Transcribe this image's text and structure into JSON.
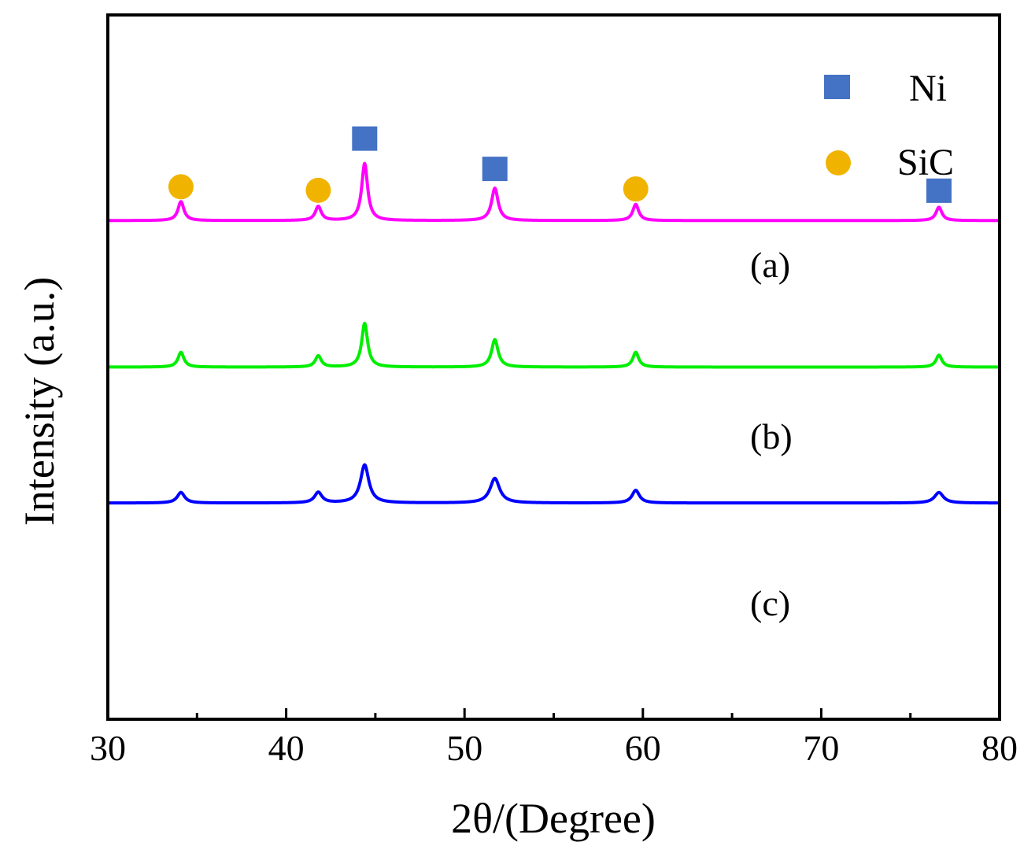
{
  "chart_data": {
    "type": "line",
    "title": "",
    "xlabel": "2θ/(Degree)",
    "ylabel": "Intensity (a.u.)",
    "xlim": [
      30,
      80
    ],
    "ylim": [
      0,
      100
    ],
    "major_ticks": [
      30,
      40,
      50,
      60,
      70,
      80
    ],
    "major_tick_labels": [
      "30",
      "40",
      "50",
      "60",
      "70",
      "80"
    ],
    "minor_ticks": [
      35,
      45,
      55,
      65,
      75
    ],
    "grid": false,
    "legend": {
      "position": "top-right",
      "entries": [
        {
          "label": "Ni",
          "marker": "square",
          "color": "#4472c4"
        },
        {
          "label": "SiC",
          "marker": "circle",
          "color": "#f0b400"
        }
      ]
    },
    "series": [
      {
        "name": "(a)",
        "color": "#ff00ff",
        "baseline": 70.8,
        "peaks": [
          {
            "x": 34.1,
            "height": 2.7,
            "width": 0.2
          },
          {
            "x": 41.8,
            "height": 2.0,
            "width": 0.2
          },
          {
            "x": 44.4,
            "height": 8.1,
            "width": 0.2
          },
          {
            "x": 51.7,
            "height": 4.6,
            "width": 0.22
          },
          {
            "x": 59.6,
            "height": 2.3,
            "width": 0.2
          },
          {
            "x": 76.6,
            "height": 1.9,
            "width": 0.2
          }
        ]
      },
      {
        "name": "(b)",
        "color": "#00ee00",
        "baseline": 50.0,
        "peaks": [
          {
            "x": 34.1,
            "height": 2.1,
            "width": 0.2
          },
          {
            "x": 41.8,
            "height": 1.6,
            "width": 0.2
          },
          {
            "x": 44.4,
            "height": 6.2,
            "width": 0.2
          },
          {
            "x": 51.7,
            "height": 3.9,
            "width": 0.22
          },
          {
            "x": 59.6,
            "height": 2.1,
            "width": 0.2
          },
          {
            "x": 76.6,
            "height": 1.7,
            "width": 0.2
          }
        ]
      },
      {
        "name": "(c)",
        "color": "#0000ff",
        "baseline": 30.7,
        "peaks": [
          {
            "x": 34.1,
            "height": 1.5,
            "width": 0.25
          },
          {
            "x": 41.8,
            "height": 1.5,
            "width": 0.25
          },
          {
            "x": 44.4,
            "height": 5.4,
            "width": 0.28
          },
          {
            "x": 51.7,
            "height": 3.5,
            "width": 0.32
          },
          {
            "x": 59.6,
            "height": 1.8,
            "width": 0.25
          },
          {
            "x": 76.6,
            "height": 1.5,
            "width": 0.3
          }
        ]
      }
    ],
    "peak_markers": [
      {
        "phase": "SiC",
        "x": 34.1,
        "y": 75.6
      },
      {
        "phase": "SiC",
        "x": 41.8,
        "y": 75.1
      },
      {
        "phase": "Ni",
        "x": 44.4,
        "y": 82.5
      },
      {
        "phase": "Ni",
        "x": 51.7,
        "y": 78.2
      },
      {
        "phase": "SiC",
        "x": 59.6,
        "y": 75.3
      },
      {
        "phase": "Ni",
        "x": 76.6,
        "y": 75.1
      }
    ]
  }
}
